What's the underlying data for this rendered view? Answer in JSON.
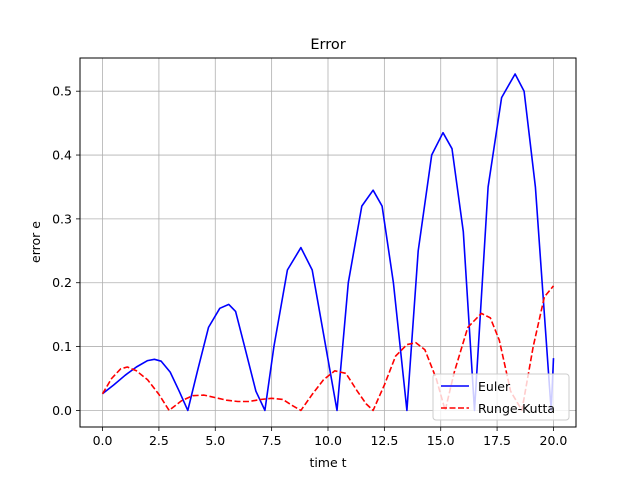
{
  "chart_data": {
    "type": "line",
    "title": "Error",
    "xlabel": "time t",
    "ylabel": "error e",
    "xlim": [
      -1.0,
      21.0
    ],
    "ylim": [
      -0.026,
      0.552
    ],
    "grid": true,
    "legend_position": "bottom-right",
    "xticks": [
      "0.0",
      "2.5",
      "5.0",
      "7.5",
      "10.0",
      "12.5",
      "15.0",
      "17.5",
      "20.0"
    ],
    "xtick_values": [
      0.0,
      2.5,
      5.0,
      7.5,
      10.0,
      12.5,
      15.0,
      17.5,
      20.0
    ],
    "yticks": [
      "0.0",
      "0.1",
      "0.2",
      "0.3",
      "0.4",
      "0.5"
    ],
    "ytick_values": [
      0.0,
      0.1,
      0.2,
      0.3,
      0.4,
      0.5
    ],
    "series": [
      {
        "name": "Euler",
        "color": "#0000ff",
        "style": "solid",
        "x": [
          0.0,
          0.5,
          1.0,
          1.5,
          2.0,
          2.3,
          2.6,
          3.0,
          3.4,
          3.78,
          4.2,
          4.7,
          5.2,
          5.6,
          5.9,
          6.3,
          6.8,
          7.2,
          7.6,
          8.2,
          8.8,
          9.3,
          9.8,
          10.4,
          10.9,
          11.5,
          12.0,
          12.4,
          12.9,
          13.5,
          14.0,
          14.6,
          15.1,
          15.5,
          16.0,
          16.5,
          17.1,
          17.7,
          18.3,
          18.7,
          19.2,
          19.8,
          19.9,
          20.0
        ],
        "y": [
          0.026,
          0.04,
          0.055,
          0.068,
          0.078,
          0.08,
          0.077,
          0.06,
          0.03,
          0.0,
          0.06,
          0.13,
          0.16,
          0.166,
          0.155,
          0.1,
          0.03,
          0.0,
          0.1,
          0.22,
          0.255,
          0.22,
          0.12,
          0.0,
          0.2,
          0.32,
          0.345,
          0.32,
          0.2,
          0.0,
          0.25,
          0.4,
          0.435,
          0.41,
          0.28,
          0.0,
          0.35,
          0.49,
          0.527,
          0.5,
          0.35,
          0.05,
          0.0,
          0.082
        ]
      },
      {
        "name": "Runge-Kutta",
        "color": "#ff0000",
        "style": "dashed",
        "x": [
          0.0,
          0.4,
          0.8,
          1.1,
          1.5,
          2.0,
          2.5,
          2.95,
          3.5,
          4.0,
          4.5,
          5.0,
          5.5,
          6.0,
          6.5,
          7.0,
          7.5,
          8.0,
          8.4,
          8.8,
          9.3,
          9.8,
          10.3,
          10.8,
          11.3,
          11.7,
          12.0,
          12.5,
          13.0,
          13.5,
          13.9,
          14.3,
          14.8,
          15.2,
          15.6,
          16.2,
          16.8,
          17.2,
          17.6,
          18.1,
          18.6,
          19.1,
          19.6,
          20.0
        ],
        "y": [
          0.026,
          0.05,
          0.065,
          0.068,
          0.062,
          0.048,
          0.025,
          0.0,
          0.015,
          0.023,
          0.024,
          0.02,
          0.016,
          0.014,
          0.014,
          0.017,
          0.019,
          0.017,
          0.008,
          0.0,
          0.025,
          0.048,
          0.062,
          0.058,
          0.03,
          0.01,
          0.0,
          0.04,
          0.085,
          0.103,
          0.106,
          0.095,
          0.05,
          0.0,
          0.06,
          0.13,
          0.152,
          0.145,
          0.11,
          0.03,
          0.0,
          0.1,
          0.178,
          0.195
        ]
      }
    ]
  }
}
